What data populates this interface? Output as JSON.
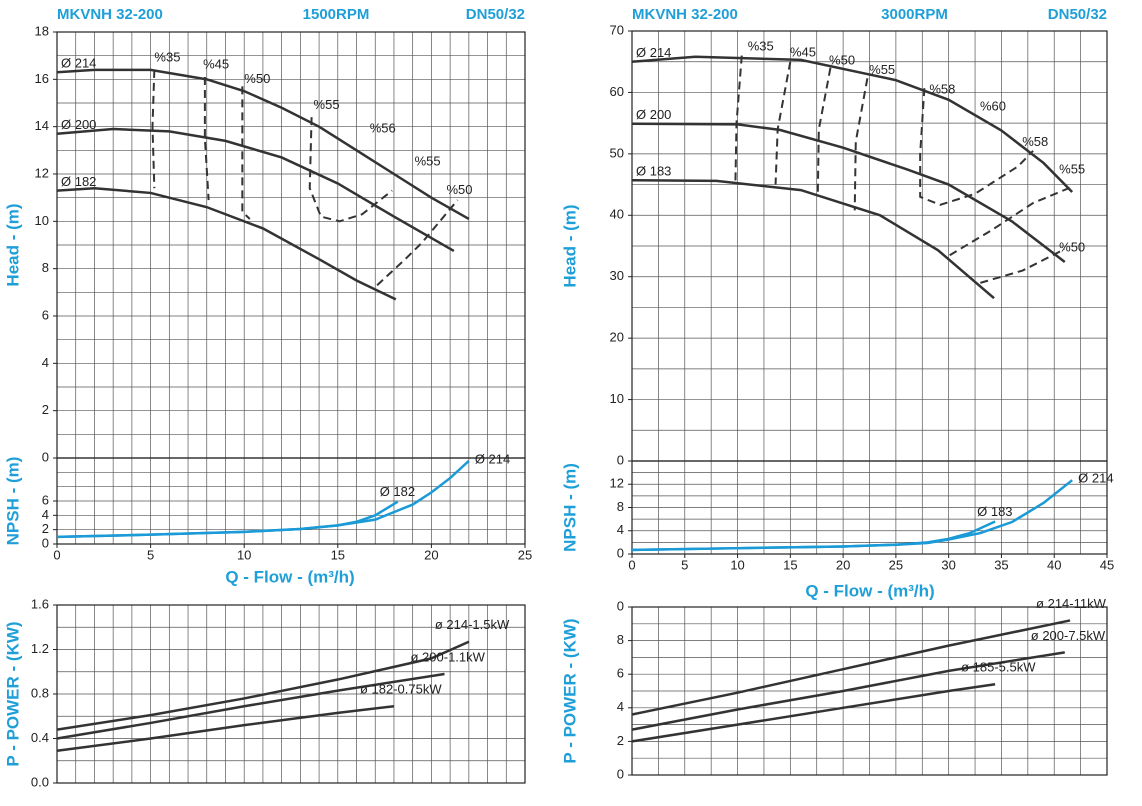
{
  "chart_data": [
    {
      "type": "line",
      "title": "MKVNH 32-200",
      "speed": "1500RPM",
      "size": "DN50/32",
      "ylabel": "Head - (m)",
      "xlim": [
        0,
        25
      ],
      "ylim": [
        0,
        18
      ],
      "yticks": [
        0,
        2,
        4,
        6,
        8,
        10,
        12,
        14,
        16,
        18
      ],
      "label_position": "start",
      "series": [
        {
          "name": "Ø 214",
          "color": "#333333",
          "x": [
            0,
            2,
            5,
            8,
            10,
            12,
            14,
            16,
            18,
            20,
            22
          ],
          "values": [
            16.3,
            16.4,
            16.4,
            16.0,
            15.5,
            14.8,
            14.0,
            13.0,
            12.0,
            11.0,
            10.1
          ]
        },
        {
          "name": "Ø 200",
          "color": "#333333",
          "x": [
            0,
            3,
            6,
            9,
            12,
            15,
            18,
            21.2
          ],
          "values": [
            13.7,
            13.9,
            13.8,
            13.4,
            12.7,
            11.6,
            10.2,
            8.75
          ]
        },
        {
          "name": "Ø 182",
          "color": "#333333",
          "x": [
            0,
            2,
            5,
            8,
            11,
            14,
            16,
            18.1
          ],
          "values": [
            11.3,
            11.4,
            11.2,
            10.6,
            9.7,
            8.4,
            7.5,
            6.7
          ]
        }
      ],
      "efficiency_curves": [
        {
          "x": [
            5.2,
            5.1,
            5.2
          ],
          "values": [
            16.4,
            14,
            11.4
          ]
        },
        {
          "x": [
            7.9,
            7.9,
            8.1
          ],
          "values": [
            16.1,
            13.5,
            10.9
          ]
        },
        {
          "x": [
            9.9,
            9.9,
            10.3
          ],
          "values": [
            15.7,
            10.4,
            10.1
          ]
        },
        {
          "x": [
            13.6,
            13.5,
            14.1,
            15.1,
            16.3,
            17.9
          ],
          "values": [
            14.4,
            11.4,
            10.2,
            10.0,
            10.3,
            11.3
          ]
        },
        {
          "x": [
            17.1,
            18.6,
            19.5,
            21.4
          ],
          "values": [
            7.3,
            8.4,
            9.1,
            10.9
          ]
        }
      ],
      "annotations": [
        {
          "text": "%35",
          "x": 5.9,
          "y": 16.9
        },
        {
          "text": "%45",
          "x": 8.5,
          "y": 16.6
        },
        {
          "text": "%50",
          "x": 10.7,
          "y": 16.0
        },
        {
          "text": "%55",
          "x": 14.4,
          "y": 14.9
        },
        {
          "text": "%56",
          "x": 17.4,
          "y": 13.9
        },
        {
          "text": "%55",
          "x": 19.8,
          "y": 12.5
        },
        {
          "text": "%50",
          "x": 21.5,
          "y": 11.3
        }
      ]
    },
    {
      "type": "line",
      "ylabel": "NPSH - (m)",
      "xlabel": "Q - Flow - (m³/h)",
      "xlim": [
        0,
        25
      ],
      "xticks": [
        0,
        5,
        10,
        15,
        20,
        25
      ],
      "ylim": [
        0,
        12
      ],
      "yticks": [
        0,
        2,
        4,
        6
      ],
      "label_position": "end",
      "series": [
        {
          "name": "Ø 214",
          "color": "#1a9ad6",
          "x": [
            0,
            5,
            10,
            13,
            15,
            17,
            19,
            20,
            21,
            22
          ],
          "values": [
            1.0,
            1.3,
            1.7,
            2.1,
            2.6,
            3.4,
            5.5,
            7.2,
            9.2,
            11.6
          ]
        },
        {
          "name": "Ø 182",
          "color": "#1a9ad6",
          "x": [
            0,
            5,
            10,
            13,
            15,
            16,
            17,
            18.2
          ],
          "values": [
            1.0,
            1.3,
            1.7,
            2.1,
            2.6,
            3.1,
            4.0,
            5.9
          ]
        }
      ]
    },
    {
      "type": "line",
      "ylabel": "P - POWER - (KW)",
      "xlim": [
        0,
        25
      ],
      "ylim": [
        0,
        1.6
      ],
      "yticks": [
        {
          "value": 0,
          "label": "0.0"
        },
        0.4,
        0.8,
        1.2,
        1.6
      ],
      "label_position": "end",
      "series": [
        {
          "name": "ø 214-1.5kW",
          "color": "#333333",
          "x": [
            0,
            5,
            10,
            15,
            20,
            22
          ],
          "values": [
            0.48,
            0.61,
            0.76,
            0.93,
            1.12,
            1.27
          ]
        },
        {
          "name": "ø 200-1.1kW",
          "color": "#333333",
          "x": [
            0,
            5,
            10,
            15,
            20.7
          ],
          "values": [
            0.4,
            0.54,
            0.69,
            0.83,
            0.98
          ]
        },
        {
          "name": "ø 182-0.75kW",
          "color": "#333333",
          "x": [
            0,
            5,
            10,
            15,
            18
          ],
          "values": [
            0.29,
            0.4,
            0.52,
            0.63,
            0.69
          ]
        }
      ]
    },
    {
      "type": "line",
      "title": "MKVNH 32-200",
      "speed": "3000RPM",
      "size": "DN50/32",
      "ylabel": "Head - (m)",
      "xlim": [
        0,
        45
      ],
      "ylim": [
        0,
        70
      ],
      "yticks": [
        0,
        10,
        20,
        30,
        40,
        50,
        60,
        70
      ],
      "label_position": "start",
      "series": [
        {
          "name": "Ø 214",
          "color": "#333333",
          "x": [
            0,
            6,
            16,
            25,
            30,
            35,
            39,
            41.7
          ],
          "values": [
            65,
            65.8,
            65.3,
            62,
            58.8,
            53.8,
            48.5,
            43.8
          ]
        },
        {
          "name": "Ø 200",
          "color": "#333333",
          "x": [
            0,
            10,
            14,
            20,
            26,
            30,
            36,
            41
          ],
          "values": [
            54.9,
            54.8,
            53.9,
            51,
            47.5,
            45,
            39,
            32.4
          ]
        },
        {
          "name": "Ø 183",
          "color": "#333333",
          "x": [
            0,
            8,
            16,
            23.5,
            29,
            34.3
          ],
          "values": [
            45.7,
            45.6,
            44.1,
            40,
            34.3,
            26.5
          ]
        }
      ],
      "efficiency_curves": [
        {
          "x": [
            10.4,
            9.9,
            9.8
          ],
          "values": [
            66,
            55,
            45.5
          ]
        },
        {
          "x": [
            15,
            13.8,
            13.6
          ],
          "values": [
            65,
            54,
            45
          ]
        },
        {
          "x": [
            18.8,
            17.7,
            17.6
          ],
          "values": [
            64,
            54,
            43.3
          ]
        },
        {
          "x": [
            22.3,
            21.2,
            21.1
          ],
          "values": [
            62.3,
            52,
            40.8
          ]
        },
        {
          "x": [
            27.7,
            27.3,
            27.3,
            29.2,
            32.5,
            36.6,
            38
          ],
          "values": [
            60.7,
            50,
            43,
            41.7,
            43.5,
            48,
            50.5
          ]
        },
        {
          "x": [
            30.1,
            34,
            38,
            41.5
          ],
          "values": [
            33.5,
            37.5,
            42,
            44.5
          ]
        },
        {
          "x": [
            33,
            37,
            41
          ],
          "values": [
            29,
            31,
            34.5
          ]
        }
      ],
      "annotations": [
        {
          "text": "%35",
          "x": 12.2,
          "y": 67.4
        },
        {
          "text": "%45",
          "x": 16.2,
          "y": 66.4
        },
        {
          "text": "%50",
          "x": 19.9,
          "y": 65.1
        },
        {
          "text": "%55",
          "x": 23.7,
          "y": 63.6
        },
        {
          "text": "%58",
          "x": 29.4,
          "y": 60.4
        },
        {
          "text": "%60",
          "x": 34.2,
          "y": 57.6
        },
        {
          "text": "%58",
          "x": 38.2,
          "y": 51.8
        },
        {
          "text": "%55",
          "x": 41.7,
          "y": 47.4
        },
        {
          "text": "%50",
          "x": 41.7,
          "y": 34.7
        }
      ]
    },
    {
      "type": "line",
      "ylabel": "NPSH - (m)",
      "xlabel": "Q - Flow - (m³/h)",
      "xlim": [
        0,
        45
      ],
      "xticks": [
        0,
        5,
        10,
        15,
        20,
        25,
        30,
        35,
        40,
        45
      ],
      "ylim": [
        0,
        16
      ],
      "yticks": [
        0,
        4,
        8,
        12
      ],
      "label_position": "end",
      "series": [
        {
          "name": "Ø 214",
          "color": "#1a9ad6",
          "x": [
            0,
            10,
            20,
            25,
            28,
            30,
            33,
            36,
            39,
            41.7
          ],
          "values": [
            0.7,
            1.0,
            1.3,
            1.6,
            1.9,
            2.5,
            3.6,
            5.5,
            8.8,
            12.7
          ]
        },
        {
          "name": "Ø 183",
          "color": "#1a9ad6",
          "x": [
            0,
            10,
            20,
            25,
            28,
            30,
            32,
            34.4
          ],
          "values": [
            0.7,
            1.0,
            1.3,
            1.6,
            2.0,
            2.6,
            3.6,
            5.6
          ]
        }
      ]
    },
    {
      "type": "line",
      "ylabel": "P - POWER - (KW)",
      "xlim": [
        0,
        45
      ],
      "ylim": [
        0,
        10
      ],
      "yticks": [
        0,
        2,
        4,
        6,
        8,
        {
          "value": 10,
          "label": "0"
        }
      ],
      "label_position": "end",
      "series": [
        {
          "name": "ø 214-11kW",
          "color": "#333333",
          "x": [
            0,
            10,
            20,
            30,
            41.5
          ],
          "values": [
            3.6,
            4.9,
            6.3,
            7.7,
            9.2
          ]
        },
        {
          "name": "ø 200-7.5kW",
          "color": "#333333",
          "x": [
            0,
            10,
            20,
            30,
            41
          ],
          "values": [
            2.7,
            3.9,
            5.0,
            6.2,
            7.3
          ]
        },
        {
          "name": "ø 185-5.5kW",
          "color": "#333333",
          "x": [
            0,
            10,
            20,
            30,
            34.4
          ],
          "values": [
            2.0,
            3.0,
            4.0,
            5.0,
            5.4
          ]
        }
      ]
    }
  ]
}
